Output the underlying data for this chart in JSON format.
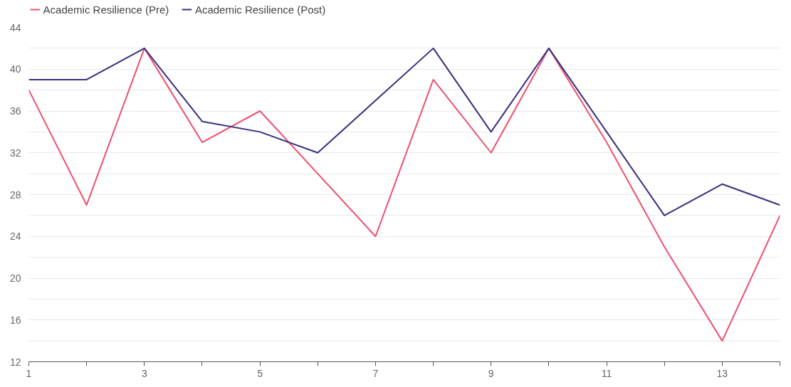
{
  "chart_data": {
    "type": "line",
    "x": [
      1,
      2,
      3,
      4,
      5,
      6,
      7,
      8,
      9,
      10,
      11,
      12,
      13,
      14
    ],
    "series": [
      {
        "name": "Academic Resilience (Pre)",
        "color": "#f0506e",
        "values": [
          38,
          27,
          42,
          33,
          36,
          30,
          24,
          39,
          32,
          42,
          33,
          23,
          14,
          26
        ]
      },
      {
        "name": "Academic Resilience (Post)",
        "color": "#35307f",
        "values": [
          39,
          39,
          42,
          35,
          34,
          32,
          37,
          42,
          34,
          42,
          34,
          26,
          29,
          27
        ]
      }
    ],
    "xlim": [
      1,
      14
    ],
    "xticks": [
      1,
      {
        "value": 2,
        "label": null
      },
      3,
      {
        "value": 4,
        "label": null
      },
      5,
      {
        "value": 6,
        "label": null
      },
      7,
      {
        "value": 8,
        "label": null
      },
      9,
      {
        "value": 10,
        "label": null
      },
      11,
      {
        "value": 12,
        "label": null
      },
      13,
      {
        "value": 14,
        "label": null
      }
    ],
    "ylim": [
      12,
      44
    ],
    "yticks": [
      12,
      {
        "value": 14,
        "label": null
      },
      16,
      {
        "value": 18,
        "label": null
      },
      20,
      {
        "value": 22,
        "label": null
      },
      24,
      {
        "value": 26,
        "label": null
      },
      28,
      {
        "value": 30,
        "label": null
      },
      32,
      {
        "value": 34,
        "label": null
      },
      36,
      {
        "value": 38,
        "label": null
      },
      40,
      {
        "value": 42,
        "label": null
      },
      44
    ],
    "grid": "y",
    "legend": "top left",
    "marker": "none",
    "line_style": "solid"
  }
}
